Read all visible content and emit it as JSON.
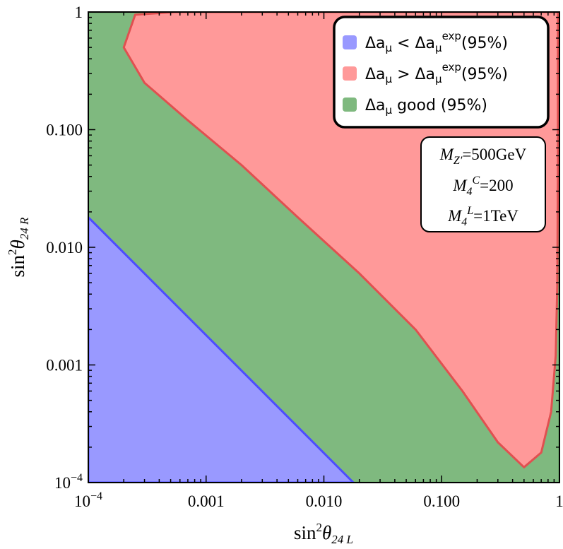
{
  "chart_data": {
    "type": "area",
    "x_scale": "log",
    "y_scale": "log",
    "xlim": [
      0.0001,
      1
    ],
    "ylim": [
      0.0001,
      1
    ],
    "x_ticks": [
      {
        "value": 0.0001,
        "base": "10",
        "exp": "−4"
      },
      {
        "value": 0.001,
        "label": "0.001"
      },
      {
        "value": 0.01,
        "label": "0.010"
      },
      {
        "value": 0.1,
        "label": "0.100"
      },
      {
        "value": 1,
        "label": "1"
      }
    ],
    "y_ticks": [
      {
        "value": 0.0001,
        "base": "10",
        "exp": "−4"
      },
      {
        "value": 0.001,
        "label": "0.001"
      },
      {
        "value": 0.01,
        "label": "0.010"
      },
      {
        "value": 0.1,
        "label": "0.100"
      },
      {
        "value": 1,
        "label": "1"
      }
    ],
    "xlabel": {
      "main": "sin",
      "sup": "2",
      "theta": "θ",
      "sub": "24 L"
    },
    "ylabel": {
      "main": "sin",
      "sup": "2",
      "theta": "θ",
      "sub": "24 R"
    },
    "regions": [
      {
        "key": "good",
        "legend": "Δa",
        "legend_sub": "μ",
        "legend_tail": " good (95%)",
        "fill": "#7fb97f",
        "stroke": "#6aa86a",
        "polygon": [
          [
            0.0001,
            0.0001
          ],
          [
            1,
            0.0001
          ],
          [
            1,
            1
          ],
          [
            0.0001,
            1
          ]
        ]
      },
      {
        "key": "low",
        "legend": "Δa",
        "legend_sub": "μ",
        "legend_mid": " < Δa",
        "legend_sub2": "μ",
        "legend_sup2": "exp",
        "legend_tail": "(95%)",
        "fill": "#9999ff",
        "stroke": "#4d4dff",
        "polygon": [
          [
            0.0001,
            0.0001
          ],
          [
            0.0001,
            0.018
          ],
          [
            0.0178,
            0.0001
          ]
        ]
      },
      {
        "key": "high",
        "legend": "Δa",
        "legend_sub": "μ",
        "legend_mid": " > Δa",
        "legend_sub2": "μ",
        "legend_sup2": "exp",
        "legend_tail": "(95%)",
        "fill": "#ff9999",
        "stroke": "#e05050",
        "polygon": [
          [
            0.00055,
            1
          ],
          [
            0.00025,
            0.95
          ],
          [
            0.0002,
            0.5
          ],
          [
            0.0003,
            0.25
          ],
          [
            0.0007,
            0.12
          ],
          [
            0.002,
            0.05
          ],
          [
            0.006,
            0.018
          ],
          [
            0.02,
            0.006
          ],
          [
            0.06,
            0.002
          ],
          [
            0.15,
            0.0006
          ],
          [
            0.3,
            0.00022
          ],
          [
            0.5,
            0.000135
          ],
          [
            0.7,
            0.00018
          ],
          [
            0.85,
            0.0004
          ],
          [
            0.93,
            0.0012
          ],
          [
            0.96,
            0.005
          ],
          [
            0.97,
            0.05
          ],
          [
            0.97,
            1
          ]
        ]
      }
    ],
    "legend_order": [
      "low",
      "high",
      "good"
    ],
    "legend_position": "top-right",
    "annotation": {
      "line1": {
        "var": "M",
        "sub": "Z′",
        "value": "=500GeV"
      },
      "line2": {
        "var": "M",
        "sub": "4",
        "sup": "C",
        "value": "=200"
      },
      "line3": {
        "var": "M",
        "sub": "4",
        "sup": "L",
        "value": "=1TeV"
      }
    }
  }
}
